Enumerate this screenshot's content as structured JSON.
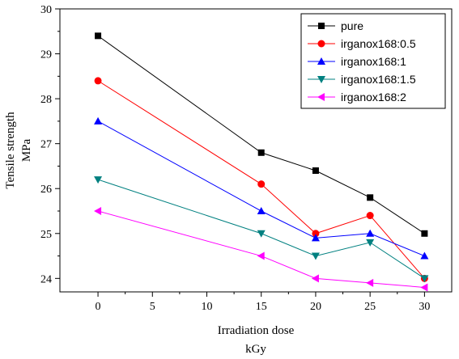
{
  "chart_data": {
    "type": "line",
    "x": [
      0,
      15,
      20,
      25,
      30
    ],
    "series": [
      {
        "name": "pure",
        "values": [
          29.4,
          26.8,
          26.4,
          25.8,
          25.0
        ],
        "color": "#000000",
        "marker": "square"
      },
      {
        "name": "irganox168:0.5",
        "values": [
          28.4,
          26.1,
          25.0,
          25.4,
          24.0
        ],
        "color": "#ff0000",
        "marker": "circle"
      },
      {
        "name": "irganox168:1",
        "values": [
          27.5,
          25.5,
          24.9,
          25.0,
          24.5
        ],
        "color": "#0000ff",
        "marker": "triangle-up"
      },
      {
        "name": "irganox168:1.5",
        "values": [
          26.2,
          25.0,
          24.5,
          24.8,
          24.0
        ],
        "color": "#008080",
        "marker": "triangle-down"
      },
      {
        "name": "irganox168:2",
        "values": [
          25.5,
          24.5,
          24.0,
          23.9,
          23.8
        ],
        "color": "#ff00ff",
        "marker": "triangle-left"
      }
    ],
    "xlabel_line1": "Irradiation dose",
    "xlabel_line2": "kGy",
    "ylabel_line1": "Tensile strength",
    "ylabel_line2": "MPa",
    "xlim": [
      -3.5,
      32.5
    ],
    "ylim": [
      23.7,
      30
    ],
    "xticks": [
      0,
      5,
      10,
      15,
      20,
      25,
      30
    ],
    "yticks": [
      24,
      25,
      26,
      27,
      28,
      29,
      30
    ],
    "grid": false,
    "legend_position": "top-right"
  }
}
